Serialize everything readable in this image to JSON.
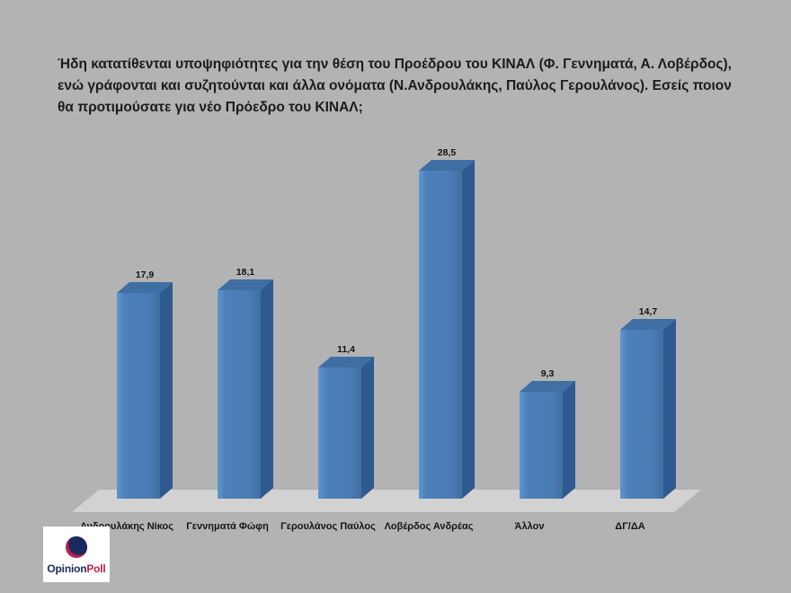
{
  "colors": {
    "background": "#b3b3b3",
    "title_text": "#1c1c1c",
    "bar_front": "#4d80ba",
    "bar_side": "#2e5a8f",
    "bar_top": "#3f6fa3",
    "floor": "#d2d2d2",
    "logo_navy": "#1b2a5e",
    "logo_red": "#c01d4e"
  },
  "logo": {
    "text_primary": "Opinion",
    "text_secondary": "Poll"
  },
  "chart_data": {
    "type": "bar",
    "style": "3d",
    "title": "Ήδη κατατίθενται υποψηφιότητες για την θέση του Προέδρου του ΚΙΝΑΛ (Φ. Γεννηματά, Α. Λοβέρδος), ενώ γράφονται και συζητούνται και άλλα ονόματα (Ν.Ανδρουλάκης, Παύλος Γερουλάνος). Εσείς ποιον θα προτιμούσατε για νέο Πρόεδρο του ΚΙΝΑΛ;",
    "categories": [
      "Ανδρουλάκης Νίκος",
      "Γεννηματά Φώφη",
      "Γερουλάνος Παύλος",
      "Λοβέρδος Ανδρέας",
      "Άλλον",
      "ΔΓ/ΔΑ"
    ],
    "values": [
      17.9,
      18.1,
      11.4,
      28.5,
      9.3,
      14.7
    ],
    "value_labels": [
      "17,9",
      "18,1",
      "11,4",
      "28,5",
      "9,3",
      "14,7"
    ],
    "xlabel": "",
    "ylabel": "",
    "ylim": [
      0,
      30
    ],
    "grid": false,
    "legend": false
  }
}
